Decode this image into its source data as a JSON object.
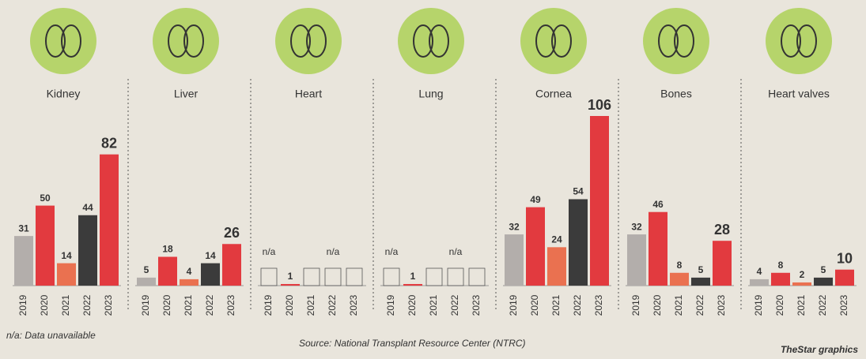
{
  "chart_data": [
    {
      "type": "bar",
      "title": "Kidney",
      "categories": [
        "2019",
        "2020",
        "2021",
        "2022",
        "2023"
      ],
      "values": [
        31,
        50,
        14,
        44,
        82
      ],
      "colors": [
        "#b3aeab",
        "#e23a3f",
        "#ea7150",
        "#3b3b3b",
        "#e23a3f"
      ]
    },
    {
      "type": "bar",
      "title": "Liver",
      "categories": [
        "2019",
        "2020",
        "2021",
        "2022",
        "2023"
      ],
      "values": [
        5,
        18,
        4,
        14,
        26
      ],
      "colors": [
        "#b3aeab",
        "#e23a3f",
        "#ea7150",
        "#3b3b3b",
        "#e23a3f"
      ]
    },
    {
      "type": "bar",
      "title": "Heart",
      "categories": [
        "2019",
        "2020",
        "2021",
        "2022",
        "2023"
      ],
      "values": [
        null,
        1,
        null,
        null,
        null
      ],
      "value_labels": [
        "n/a",
        null,
        null,
        "n/a",
        null
      ],
      "colors": [
        "#b3aeab",
        "#e23a3f",
        "#ea7150",
        "#3b3b3b",
        "#e23a3f"
      ]
    },
    {
      "type": "bar",
      "title": "Lung",
      "categories": [
        "2019",
        "2020",
        "2021",
        "2022",
        "2023"
      ],
      "values": [
        null,
        1,
        null,
        null,
        null
      ],
      "value_labels": [
        "n/a",
        null,
        null,
        "n/a",
        null
      ],
      "colors": [
        "#b3aeab",
        "#e23a3f",
        "#ea7150",
        "#3b3b3b",
        "#e23a3f"
      ]
    },
    {
      "type": "bar",
      "title": "Cornea",
      "categories": [
        "2019",
        "2020",
        "2021",
        "2022",
        "2023"
      ],
      "values": [
        32,
        49,
        24,
        54,
        106
      ],
      "colors": [
        "#b3aeab",
        "#e23a3f",
        "#ea7150",
        "#3b3b3b",
        "#e23a3f"
      ]
    },
    {
      "type": "bar",
      "title": "Bones",
      "categories": [
        "2019",
        "2020",
        "2021",
        "2022",
        "2023"
      ],
      "values": [
        32,
        46,
        8,
        5,
        28
      ],
      "colors": [
        "#b3aeab",
        "#e23a3f",
        "#ea7150",
        "#3b3b3b",
        "#e23a3f"
      ]
    },
    {
      "type": "bar",
      "title": "Heart valves",
      "categories": [
        "2019",
        "2020",
        "2021",
        "2022",
        "2023"
      ],
      "values": [
        4,
        8,
        2,
        5,
        10
      ],
      "colors": [
        "#b3aeab",
        "#e23a3f",
        "#ea7150",
        "#3b3b3b",
        "#e23a3f"
      ]
    }
  ],
  "note": "n/a: Data unavailable",
  "source": "Source: National Transplant Resource Center (NTRC)",
  "credit": "TheStar graphics"
}
